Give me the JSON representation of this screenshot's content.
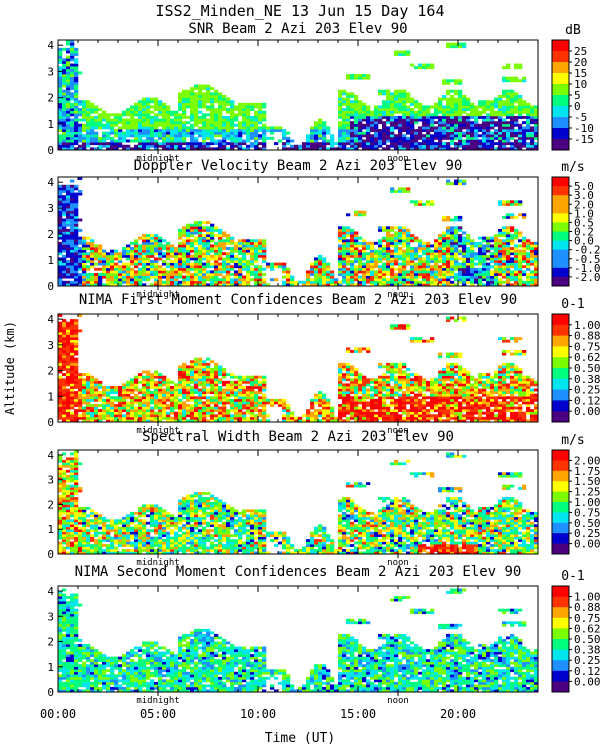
{
  "header": {
    "title": "ISS2_Minden_NE  13 Jun 15 Day 164"
  },
  "shared_axes": {
    "ylabel": "Altitude (km)",
    "xlabel": "Time (UT)",
    "x_range_hours": [
      0,
      24
    ],
    "x_tick_labels": [
      "00:00",
      "05:00",
      "10:00",
      "15:00",
      "20:00"
    ],
    "x_tick_values": [
      0,
      5,
      10,
      15,
      20
    ],
    "y_range_km": [
      0,
      4.2
    ],
    "y_tick_labels": [
      "0",
      "1",
      "2",
      "3",
      "4"
    ],
    "y_tick_values": [
      0,
      1,
      2,
      3,
      4
    ],
    "markers": [
      {
        "label": "midnight",
        "hour": 5.0
      },
      {
        "label": "noon",
        "hour": 17.0
      }
    ]
  },
  "chart_data": [
    {
      "type": "heatmap",
      "title": "SNR Beam 2 Azi 203 Elev 90",
      "units": "dB",
      "colorbar_labels": [
        "25",
        "20",
        "15",
        "10",
        "5",
        "0",
        "-5",
        "-10",
        "-15"
      ],
      "colorbar_range": [
        -17,
        28
      ],
      "field": "snr"
    },
    {
      "type": "heatmap",
      "title": "Doppler Velocity Beam 2 Azi 203 Elev 90",
      "units": "m/s",
      "colorbar_labels": [
        "5.0",
        "3.0",
        "2.0",
        "1.0",
        "0.5",
        "0.2",
        "0.0",
        "-0.2",
        "-0.5",
        "-1.0",
        "-2.0"
      ],
      "colorbar_range": [
        -2.5,
        6
      ],
      "field": "doppler"
    },
    {
      "type": "heatmap",
      "title": "NIMA First Moment Confidences Beam 2 Azi 203 Elev 90",
      "units": "0-1",
      "colorbar_labels": [
        "1.00",
        "0.88",
        "0.75",
        "0.62",
        "0.50",
        "0.38",
        "0.25",
        "0.12",
        "0.00"
      ],
      "colorbar_range": [
        0,
        1
      ],
      "field": "conf1"
    },
    {
      "type": "heatmap",
      "title": "Spectral Width Beam 2 Azi 203 Elev 90",
      "units": "m/s",
      "colorbar_labels": [
        "2.00",
        "1.75",
        "1.50",
        "1.25",
        "1.00",
        "0.75",
        "0.50",
        "0.25",
        "0.00"
      ],
      "colorbar_range": [
        0,
        2
      ],
      "field": "width"
    },
    {
      "type": "heatmap",
      "title": "NIMA Second Moment Confidences Beam 2 Azi 203 Elev 90",
      "units": "0-1",
      "colorbar_labels": [
        "1.00",
        "0.88",
        "0.75",
        "0.62",
        "0.50",
        "0.38",
        "0.25",
        "0.12",
        "0.00"
      ],
      "colorbar_range": [
        0,
        1
      ],
      "field": "conf2"
    }
  ],
  "colors": {
    "palette": [
      "#4b0082",
      "#0000cd",
      "#1e90ff",
      "#00e5ee",
      "#00ff7f",
      "#7cfc00",
      "#ffff00",
      "#ffa500",
      "#ff3300",
      "#ff0000"
    ]
  }
}
